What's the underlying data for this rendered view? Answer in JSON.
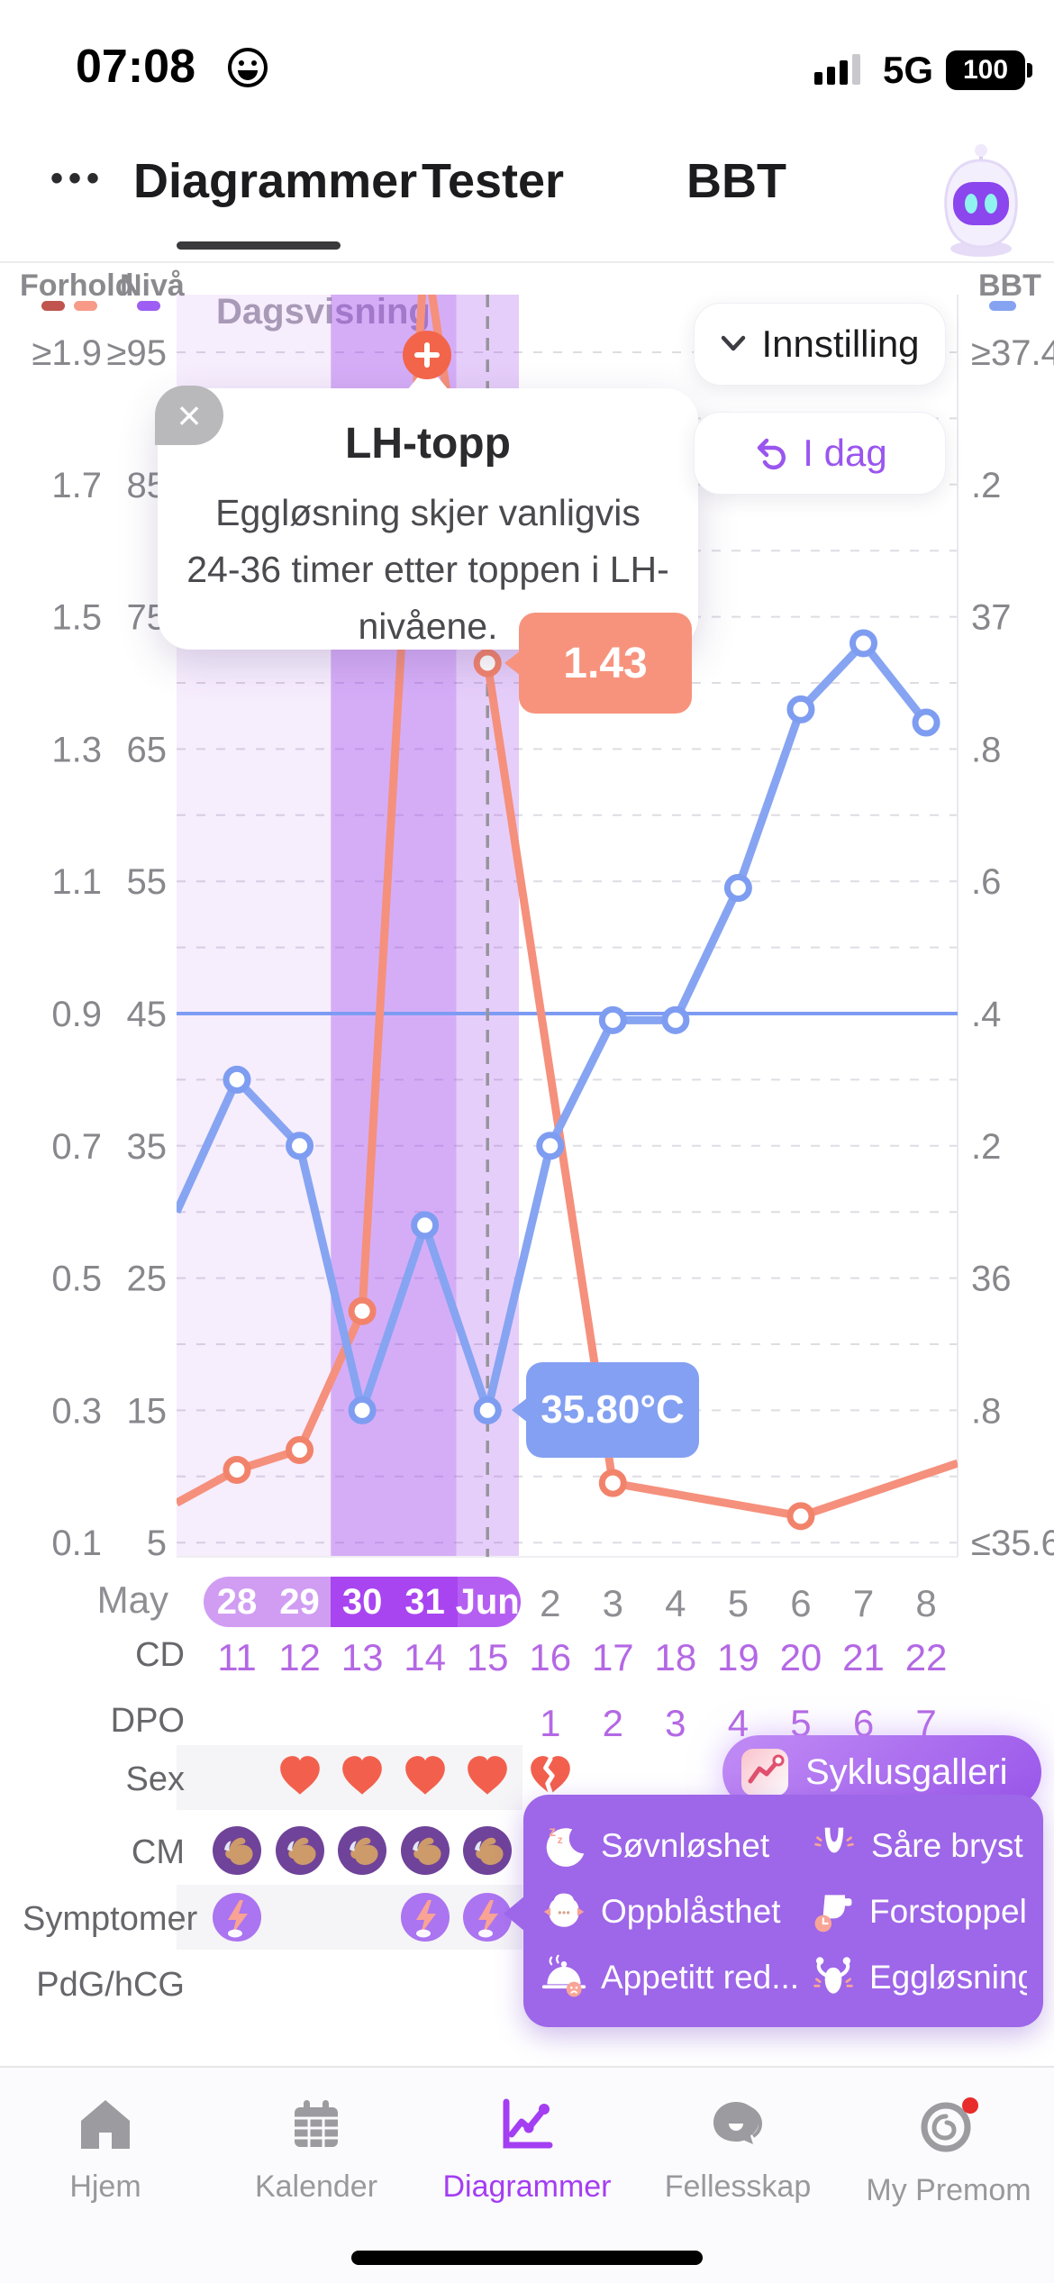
{
  "status_bar": {
    "time": "07:08",
    "emoji": "grinning-face",
    "network": "5G",
    "battery": "100",
    "signal_bars": 3
  },
  "nav": {
    "more_menu": "•••",
    "tabs": [
      {
        "label": "Diagrammer",
        "active": true
      },
      {
        "label": "Tester",
        "active": false
      },
      {
        "label": "BBT",
        "active": false
      }
    ],
    "assistant_icon": "robot-mascot"
  },
  "view_label": "Dagsvisning",
  "buttons": {
    "settings": "Innstilling",
    "today": "I dag"
  },
  "tooltip_card": {
    "title": "LH-topp",
    "body": "Eggløsning skjer vanligvis 24-36 timer etter toppen i LH-nivåene."
  },
  "callouts": {
    "lh_value": "1.43",
    "bbt_value": "35.80°C"
  },
  "legend": {
    "forhold": "Forhold",
    "niva": "Nivå",
    "bbt": "BBT",
    "colors": {
      "forhold_dark": "#c0544e",
      "forhold_light": "#f79b88",
      "niva": "#9e5ef3",
      "bbt": "#85a3f0"
    }
  },
  "chart_data": {
    "type": "line",
    "title": "LH / BBT daily cycle chart (Dagsvisning)",
    "month_label": "May",
    "x_labels": [
      "28",
      "29",
      "30",
      "31",
      "Jun",
      "2",
      "3",
      "4",
      "5",
      "6",
      "7",
      "8"
    ],
    "highlight_pill": [
      {
        "labels": [
          "28",
          "29"
        ],
        "color": "#d09df3"
      },
      {
        "labels": [
          "30",
          "31"
        ],
        "color": "#a845f0"
      },
      {
        "labels": [
          "Jun"
        ],
        "color": "#b55ff2"
      }
    ],
    "left_axis_ratio": [
      "≥1.9",
      "1.7",
      "1.5",
      "1.3",
      "1.1",
      "0.9",
      "0.7",
      "0.5",
      "0.3",
      "0.1"
    ],
    "left_axis_level": [
      "≥95",
      "85",
      "75",
      "65",
      "55",
      "45",
      "35",
      "25",
      "15",
      "5"
    ],
    "right_axis_bbt": [
      "≥37.4",
      ".2",
      "37",
      ".8",
      ".6",
      ".4",
      ".2",
      "36",
      ".8",
      "≤35.6"
    ],
    "ratio_range": [
      0.1,
      1.9
    ],
    "level_range": [
      5,
      95
    ],
    "bbt_range": [
      35.6,
      37.4
    ],
    "grid": true,
    "fertile_bands": [
      {
        "from_day": 0,
        "to_day": 1,
        "fill": "rgba(154,60,235,0.09)"
      },
      {
        "from_day": 2,
        "to_day": 3,
        "fill": "rgba(154,60,235,0.42)"
      },
      {
        "from_day": 4,
        "to_day": 4,
        "fill": "rgba(154,60,235,0.25)"
      }
    ],
    "ovulation_line_day": 4,
    "series": [
      {
        "name": "LH ratio (Forhold/Nivå)",
        "color": "#f5907c",
        "marker_color": "#f2836b",
        "edge_start_level": 8,
        "points": [
          {
            "day": 0,
            "ratio": 0.21,
            "level": 10.5
          },
          {
            "day": 1,
            "ratio": 0.24,
            "level": 12
          },
          {
            "day": 2,
            "ratio": 0.45,
            "level": 22.5
          },
          {
            "day": 3,
            "ratio": 1.9,
            "level": 103,
            "peak": true,
            "peak_label": "LH-topp"
          },
          {
            "day": 4,
            "ratio": 1.43,
            "level": 71.5,
            "callout": "1.43"
          },
          {
            "day": 6,
            "ratio": 0.19,
            "level": 9.5
          },
          {
            "day": 9,
            "ratio": 0.14,
            "level": 7
          },
          {
            "day": 11,
            "ratio": 0.22,
            "level": 11,
            "edge": true
          }
        ]
      },
      {
        "name": "BBT (°C)",
        "color": "#86a4f1",
        "marker_color": "#7e9df1",
        "edge_start_temp": 36.1,
        "temps": [
          36.3,
          36.2,
          35.8,
          36.08,
          35.8,
          36.2,
          36.39,
          36.39,
          36.59,
          36.86,
          36.96,
          36.84
        ],
        "callout_day": 4,
        "callout": "35.80°C"
      }
    ],
    "coverline_temp": 36.4
  },
  "rows": {
    "cd": {
      "label": "CD",
      "values": [
        "11",
        "12",
        "13",
        "14",
        "15",
        "16",
        "17",
        "18",
        "19",
        "20",
        "21",
        "22"
      ]
    },
    "dpo": {
      "label": "DPO",
      "values": [
        "",
        "",
        "",
        "",
        "",
        "1",
        "2",
        "3",
        "4",
        "5",
        "6",
        "7"
      ]
    },
    "sex": {
      "label": "Sex",
      "hearts": [
        {
          "day": 1
        },
        {
          "day": 2
        },
        {
          "day": 3
        },
        {
          "day": 4
        },
        {
          "day": 5,
          "broken": true
        }
      ]
    },
    "cm": {
      "label": "CM",
      "days": [
        0,
        1,
        2,
        3,
        4
      ]
    },
    "symptoms": {
      "label": "Symptomer",
      "days": [
        0,
        3,
        4
      ]
    },
    "pdg": {
      "label": "PdG/hCG"
    }
  },
  "cycle_gallery": {
    "label": "Syklusgalleri",
    "icon": "chart-thumbnail"
  },
  "symptom_popup": {
    "items": [
      {
        "icon": "moon-zz",
        "label": "Søvnløshet"
      },
      {
        "icon": "sore-breasts",
        "label": "Såre bryst"
      },
      {
        "icon": "bloating",
        "label": "Oppblåsthet"
      },
      {
        "icon": "constipation",
        "label": "Forstoppelse"
      },
      {
        "icon": "appetite-reduced",
        "label": "Appetitt red..."
      },
      {
        "icon": "ovulation-pain",
        "label": "Eggløsnings.."
      }
    ]
  },
  "tab_bar": [
    {
      "icon": "home",
      "label": "Hjem",
      "active": false
    },
    {
      "icon": "calendar",
      "label": "Kalender",
      "active": false
    },
    {
      "icon": "chart",
      "label": "Diagrammer",
      "active": true
    },
    {
      "icon": "community",
      "label": "Fellesskap",
      "active": false
    },
    {
      "icon": "profile",
      "label": "My Premom",
      "active": false,
      "badge": true
    }
  ]
}
